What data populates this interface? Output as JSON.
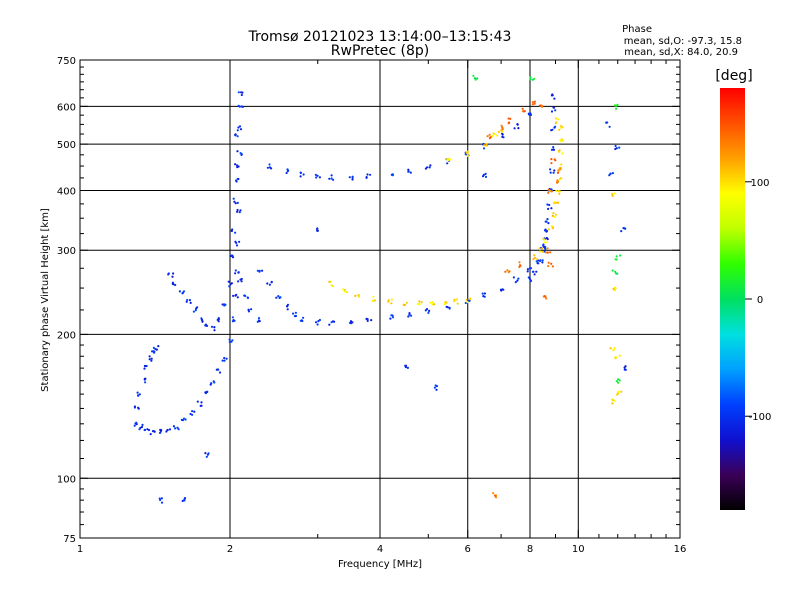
{
  "chart_data": {
    "type": "scatter",
    "title": "Tromsø 20121023 13:14:00–13:15:43",
    "subtitle": "RwPretec (8p)",
    "xlabel": "Frequency [MHz]",
    "ylabel": "Stationary phase Virtual Height [km]",
    "x_scale": "log",
    "y_scale": "log",
    "xlim": [
      1,
      16
    ],
    "ylim": [
      75,
      750
    ],
    "x_ticks": [
      1,
      2,
      4,
      6,
      8,
      10,
      16
    ],
    "x_tick_labels": [
      "1",
      "2",
      "4",
      "6",
      "8",
      "10",
      "16"
    ],
    "y_ticks": [
      75,
      100,
      200,
      300,
      400,
      500,
      600,
      750
    ],
    "y_tick_labels": [
      "75",
      "100",
      "200",
      "300",
      "400",
      "500",
      "600",
      "750"
    ],
    "x_grid": [
      2,
      4,
      6,
      8,
      10
    ],
    "y_grid": [
      100,
      200,
      300,
      400,
      500,
      600
    ],
    "grid": true,
    "phase_info": {
      "header": "Phase",
      "line_o": "mean, sd,O: -97.3, 15.8",
      "line_x": "mean, sd,X: 84.0, 20.9"
    },
    "colorbar": {
      "label": "[deg]",
      "range": [
        -180,
        180
      ],
      "ticks": [
        100,
        0,
        -100
      ],
      "tick_labels": [
        "100",
        "0",
        "-100"
      ],
      "colors": [
        "#000000",
        "#3a0058",
        "#1010d0",
        "#0040ff",
        "#00a0ff",
        "#00e0e0",
        "#00e060",
        "#30ff00",
        "#c0ff00",
        "#ffff00",
        "#ffa000",
        "#ff5000",
        "#ff0000"
      ]
    },
    "series": [
      {
        "points": [
          [
            1.3,
            130
          ],
          [
            1.33,
            128
          ],
          [
            1.36,
            126
          ],
          [
            1.4,
            125
          ],
          [
            1.45,
            125
          ],
          [
            1.5,
            126
          ],
          [
            1.56,
            128
          ],
          [
            1.62,
            132
          ],
          [
            1.68,
            137
          ],
          [
            1.74,
            143
          ],
          [
            1.8,
            150
          ],
          [
            1.85,
            158
          ],
          [
            1.9,
            167
          ],
          [
            1.95,
            178
          ],
          [
            2.0,
            195
          ],
          [
            2.03,
            215
          ],
          [
            2.05,
            240
          ],
          [
            2.06,
            270
          ],
          [
            2.07,
            310
          ],
          [
            2.08,
            360
          ],
          [
            2.08,
            420
          ],
          [
            2.09,
            480
          ],
          [
            2.09,
            540
          ],
          [
            2.1,
            600
          ],
          [
            2.1,
            640
          ],
          [
            2.0,
            255
          ],
          [
            2.02,
            290
          ],
          [
            2.04,
            330
          ],
          [
            2.05,
            380
          ],
          [
            2.06,
            450
          ],
          [
            2.07,
            520
          ],
          [
            1.95,
            230
          ],
          [
            1.9,
            215
          ],
          [
            1.85,
            205
          ],
          [
            2.1,
            260
          ],
          [
            2.15,
            240
          ],
          [
            2.2,
            225
          ],
          [
            2.3,
            215
          ],
          [
            1.52,
            265
          ],
          [
            1.55,
            255
          ],
          [
            1.6,
            245
          ],
          [
            1.65,
            235
          ],
          [
            1.7,
            225
          ],
          [
            1.75,
            215
          ],
          [
            1.8,
            208
          ],
          [
            1.36,
            170
          ],
          [
            1.38,
            178
          ],
          [
            1.4,
            185
          ],
          [
            1.42,
            188
          ],
          [
            1.34,
            160
          ],
          [
            1.32,
            150
          ],
          [
            1.3,
            140
          ],
          [
            2.3,
            270
          ],
          [
            2.4,
            255
          ],
          [
            2.5,
            240
          ],
          [
            2.6,
            228
          ],
          [
            2.7,
            220
          ],
          [
            2.8,
            215
          ],
          [
            3.0,
            212
          ],
          [
            3.2,
            211
          ],
          [
            3.5,
            212
          ],
          [
            3.8,
            214
          ],
          [
            4.2,
            217
          ],
          [
            4.6,
            220
          ],
          [
            5.0,
            224
          ],
          [
            5.5,
            229
          ],
          [
            6.0,
            235
          ],
          [
            6.5,
            242
          ],
          [
            7.0,
            250
          ],
          [
            7.5,
            260
          ],
          [
            8.0,
            272
          ],
          [
            8.3,
            285
          ],
          [
            8.5,
            300
          ],
          [
            8.6,
            320
          ],
          [
            8.7,
            345
          ],
          [
            8.75,
            370
          ],
          [
            8.8,
            400
          ],
          [
            8.85,
            440
          ],
          [
            8.88,
            490
          ],
          [
            8.9,
            540
          ],
          [
            8.92,
            590
          ],
          [
            8.95,
            630
          ],
          [
            2.4,
            450
          ],
          [
            2.6,
            440
          ],
          [
            2.8,
            432
          ],
          [
            3.0,
            428
          ],
          [
            3.2,
            426
          ],
          [
            3.5,
            426
          ],
          [
            3.8,
            428
          ],
          [
            4.2,
            433
          ],
          [
            4.6,
            440
          ],
          [
            5.0,
            448
          ],
          [
            5.5,
            460
          ],
          [
            6.0,
            475
          ],
          [
            6.5,
            495
          ],
          [
            7.0,
            520
          ],
          [
            7.5,
            545
          ],
          [
            8.0,
            575
          ],
          [
            8.0,
            260
          ],
          [
            8.2,
            270
          ],
          [
            8.4,
            285
          ],
          [
            8.55,
            305
          ],
          [
            8.65,
            330
          ],
          [
            1.45,
            90
          ],
          [
            1.62,
            90
          ],
          [
            1.8,
            112
          ],
          [
            3.0,
            330
          ],
          [
            4.5,
            172
          ],
          [
            5.2,
            155
          ],
          [
            6.5,
            430
          ],
          [
            11.5,
            550
          ],
          [
            12.3,
            330
          ],
          [
            12.4,
            170
          ],
          [
            11.6,
            430
          ],
          [
            12.0,
            490
          ]
        ],
        "phase": -100
      },
      {
        "points": [
          [
            3.2,
            255
          ],
          [
            3.4,
            248
          ],
          [
            3.6,
            242
          ],
          [
            3.9,
            237
          ],
          [
            4.2,
            234
          ],
          [
            4.5,
            232
          ],
          [
            4.8,
            232
          ],
          [
            5.1,
            232
          ],
          [
            5.4,
            233
          ],
          [
            5.7,
            234
          ],
          [
            6.0,
            236
          ],
          [
            8.2,
            290
          ],
          [
            8.4,
            300
          ],
          [
            8.6,
            315
          ],
          [
            8.8,
            335
          ],
          [
            8.95,
            355
          ],
          [
            9.05,
            375
          ],
          [
            9.1,
            395
          ],
          [
            9.15,
            420
          ],
          [
            9.2,
            450
          ],
          [
            9.25,
            480
          ],
          [
            9.3,
            510
          ],
          [
            9.2,
            540
          ],
          [
            9.1,
            560
          ],
          [
            5.5,
            460
          ],
          [
            6.0,
            478
          ],
          [
            6.5,
            500
          ],
          [
            7.0,
            530
          ],
          [
            6.8,
            520
          ],
          [
            11.8,
            390
          ],
          [
            11.9,
            250
          ],
          [
            12.0,
            180
          ],
          [
            11.8,
            145
          ],
          [
            11.7,
            185
          ],
          [
            12.1,
            150
          ]
        ],
        "phase": 100
      },
      {
        "points": [
          [
            6.6,
            520
          ],
          [
            7.0,
            540
          ],
          [
            7.3,
            560
          ],
          [
            7.8,
            590
          ],
          [
            8.1,
            610
          ],
          [
            8.4,
            600
          ],
          [
            8.8,
            400
          ],
          [
            9.0,
            420
          ],
          [
            9.2,
            440
          ],
          [
            8.9,
            460
          ],
          [
            8.7,
            300
          ],
          [
            8.8,
            280
          ],
          [
            7.2,
            270
          ],
          [
            7.6,
            280
          ],
          [
            6.8,
            92
          ],
          [
            8.6,
            240
          ]
        ],
        "phase": 140
      },
      {
        "points": [
          [
            6.2,
            690
          ],
          [
            8.1,
            690
          ],
          [
            11.9,
            600
          ],
          [
            12.0,
            290
          ],
          [
            11.85,
            270
          ],
          [
            12.05,
            160
          ]
        ],
        "phase": 10
      }
    ]
  }
}
